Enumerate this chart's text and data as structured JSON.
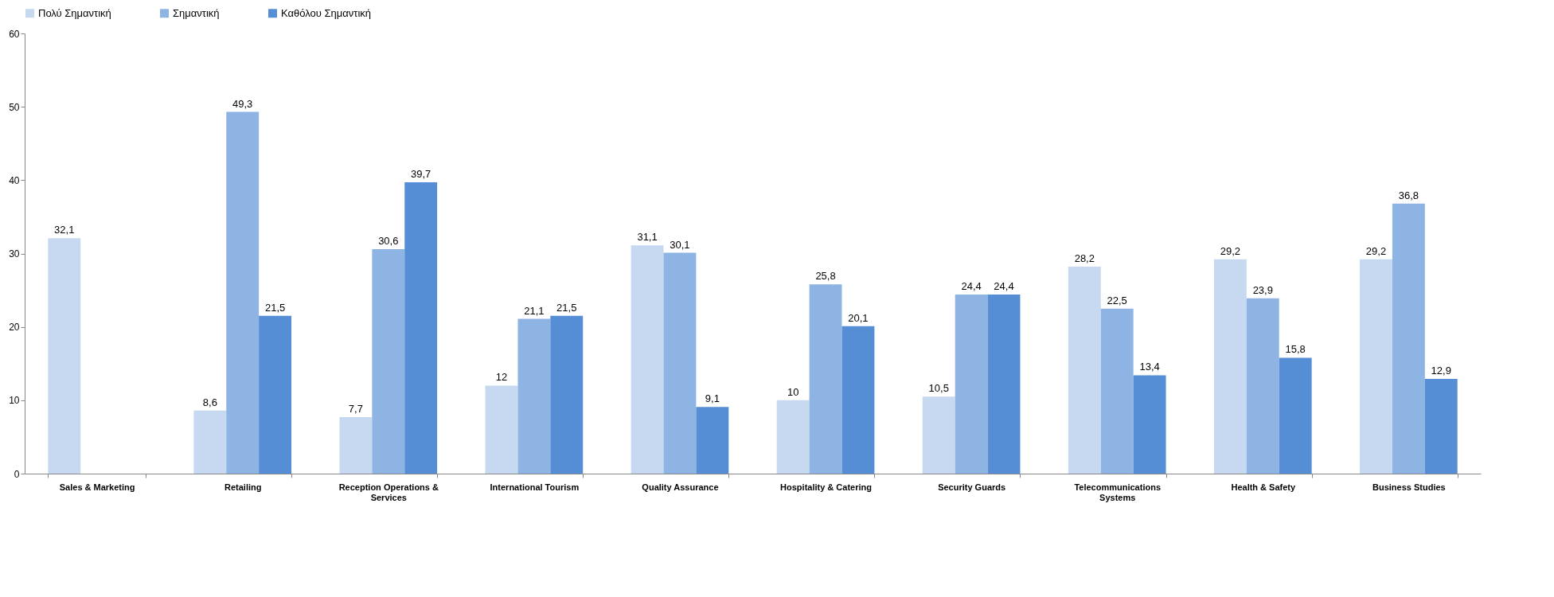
{
  "chart_data": {
    "type": "bar",
    "categories": [
      "Sales & Marketing",
      "Retailing",
      "Reception Operations & Services",
      "International Tourism",
      "Quality Assurance",
      "Hospitality & Catering",
      "Security Guards",
      "Telecommunications Systems",
      "Health & Safety",
      "Business Studies"
    ],
    "series": [
      {
        "name": "Πολύ Σημαντική",
        "color": "#c6d9f1",
        "values": [
          32.1,
          8.6,
          7.7,
          12,
          31.1,
          10,
          10.5,
          28.2,
          29.2,
          29.2
        ],
        "value_labels": [
          "32,1",
          "8,6",
          "7,7",
          "12",
          "31,1",
          "10",
          "10,5",
          "28,2",
          "29,2",
          "29,2"
        ]
      },
      {
        "name": "Σημαντική",
        "color": "#8eb4e3",
        "values": [
          null,
          49.3,
          30.6,
          21.1,
          30.1,
          25.8,
          24.4,
          22.5,
          23.9,
          36.8
        ],
        "value_labels": [
          null,
          "49,3",
          "30,6",
          "21,1",
          "30,1",
          "25,8",
          "24,4",
          "22,5",
          "23,9",
          "36,8"
        ]
      },
      {
        "name": "Καθόλου Σημαντική",
        "color": "#558ed5",
        "values": [
          null,
          21.5,
          39.7,
          21.5,
          9.1,
          20.1,
          24.4,
          13.4,
          15.8,
          12.9
        ],
        "value_labels": [
          null,
          "21,5",
          "39,7",
          "21,5",
          "9,1",
          "20,1",
          "24,4",
          "13,4",
          "15,8",
          "12,9"
        ]
      }
    ],
    "ylim": [
      0,
      60
    ],
    "yticks": [
      0,
      10,
      20,
      30,
      40,
      50,
      60
    ],
    "grid": false,
    "legend": "top"
  }
}
